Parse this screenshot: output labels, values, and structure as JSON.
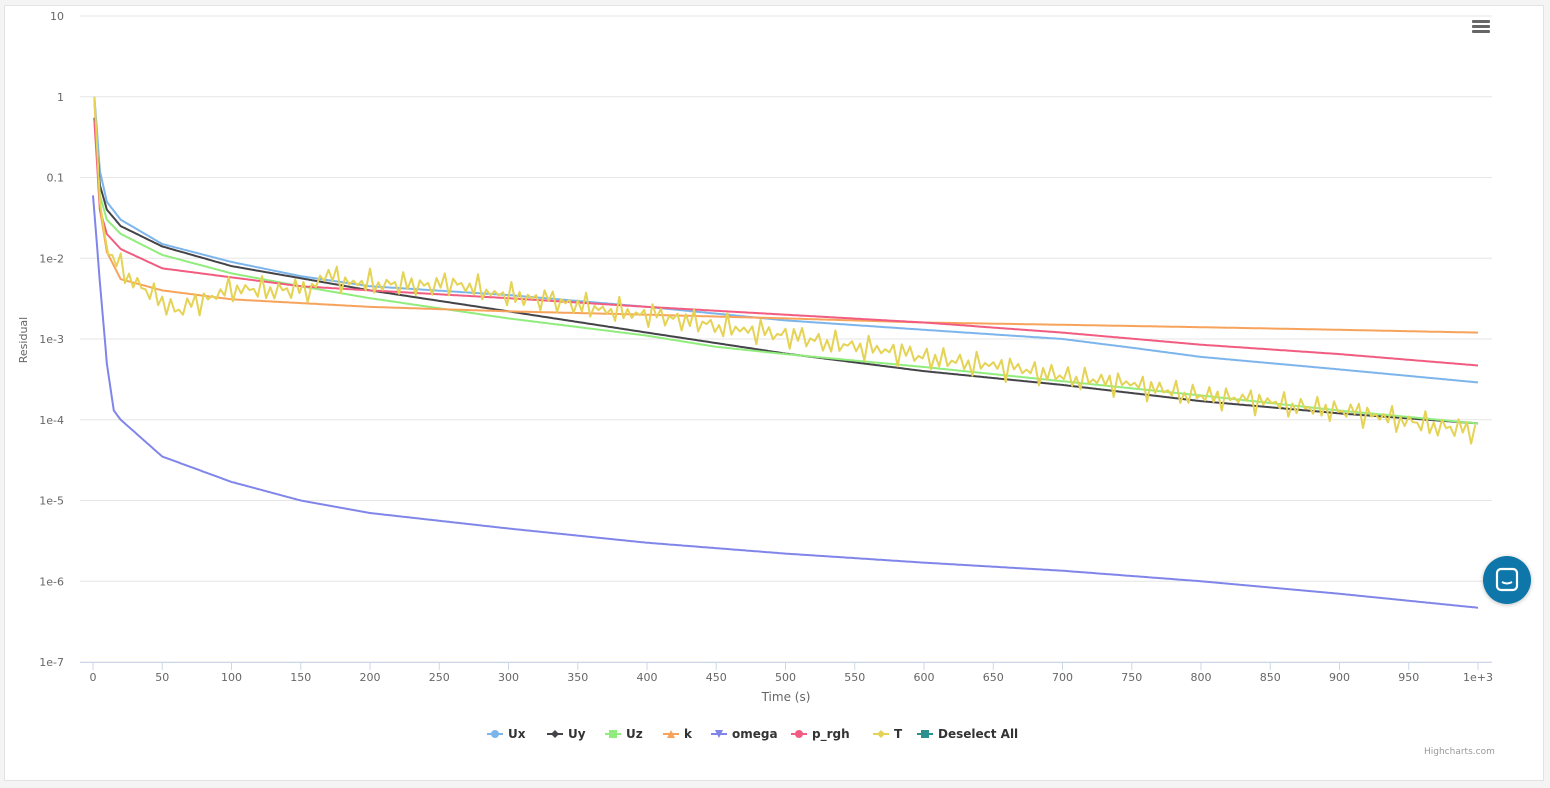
{
  "chart_data": {
    "type": "line",
    "title": "",
    "xlabel": "Time (s)",
    "ylabel": "Residual",
    "yscale": "log",
    "ylim": [
      1e-07,
      10
    ],
    "xlim": [
      0,
      1000
    ],
    "x_ticks": [
      "0",
      "50",
      "100",
      "150",
      "200",
      "250",
      "300",
      "350",
      "400",
      "450",
      "500",
      "550",
      "600",
      "650",
      "700",
      "750",
      "800",
      "850",
      "900",
      "950",
      "1e+3"
    ],
    "y_ticks": [
      "10",
      "1",
      "0.1",
      "1e-2",
      "1e-3",
      "1e-4",
      "1e-5",
      "1e-6",
      "1e-7"
    ],
    "grid": true,
    "legend_position": "bottom-center",
    "series": [
      {
        "name": "Ux",
        "color": "#7cb5ec",
        "marker": "circle",
        "x": [
          1,
          5,
          10,
          20,
          50,
          100,
          150,
          200,
          300,
          400,
          500,
          600,
          700,
          750,
          800,
          900,
          1000
        ],
        "values": [
          1,
          0.12,
          0.05,
          0.03,
          0.015,
          0.009,
          0.006,
          0.0045,
          0.0035,
          0.0025,
          0.0017,
          0.0013,
          0.001,
          0.00078,
          0.0006,
          0.00042,
          0.00029
        ]
      },
      {
        "name": "Uy",
        "color": "#434348",
        "marker": "diamond",
        "x": [
          1,
          5,
          10,
          20,
          50,
          100,
          200,
          300,
          400,
          500,
          600,
          700,
          800,
          900,
          1000
        ],
        "values": [
          0.55,
          0.08,
          0.04,
          0.025,
          0.014,
          0.008,
          0.004,
          0.0022,
          0.0012,
          0.00066,
          0.0004,
          0.00027,
          0.00017,
          0.00012,
          9e-05
        ]
      },
      {
        "name": "Uz",
        "color": "#90ed7d",
        "marker": "square",
        "x": [
          1,
          5,
          10,
          20,
          50,
          100,
          150,
          200,
          300,
          400,
          450,
          500,
          600,
          700,
          800,
          900,
          1000
        ],
        "values": [
          0.5,
          0.06,
          0.03,
          0.02,
          0.011,
          0.0065,
          0.0045,
          0.0032,
          0.0018,
          0.0011,
          0.0008,
          0.00065,
          0.00045,
          0.0003,
          0.0002,
          0.00013,
          9e-05
        ]
      },
      {
        "name": "k",
        "color": "#f7a35c",
        "marker": "triangle",
        "x": [
          1,
          5,
          10,
          20,
          50,
          100,
          200,
          300,
          400,
          500,
          600,
          700,
          800,
          900,
          1000
        ],
        "values": [
          0.9,
          0.04,
          0.012,
          0.0055,
          0.004,
          0.0031,
          0.0025,
          0.0022,
          0.002,
          0.0018,
          0.0016,
          0.0015,
          0.0014,
          0.0013,
          0.0012
        ]
      },
      {
        "name": "omega",
        "color": "#8085e9",
        "marker": "triangle-down",
        "x": [
          0,
          5,
          10,
          15,
          20,
          50,
          100,
          150,
          200,
          300,
          400,
          500,
          600,
          700,
          800,
          900,
          1000
        ],
        "values": [
          0.06,
          0.005,
          0.0005,
          0.00013,
          0.0001,
          3.5e-05,
          1.7e-05,
          1e-05,
          7e-06,
          4.5e-06,
          3e-06,
          2.2e-06,
          1.7e-06,
          1.35e-06,
          1e-06,
          7e-07,
          4.7e-07
        ]
      },
      {
        "name": "p_rgh",
        "color": "#f15c80",
        "marker": "circle",
        "x": [
          1,
          5,
          10,
          20,
          50,
          100,
          150,
          200,
          300,
          400,
          500,
          600,
          700,
          800,
          900,
          1000
        ],
        "values": [
          0.5,
          0.04,
          0.02,
          0.013,
          0.0075,
          0.0058,
          0.0045,
          0.004,
          0.0032,
          0.0025,
          0.002,
          0.0016,
          0.0012,
          0.00085,
          0.00065,
          0.00047
        ]
      },
      {
        "name": "T",
        "color": "#e4d354",
        "marker": "diamond",
        "oscillation": 1.5,
        "x": [
          1,
          5,
          10,
          20,
          30,
          50,
          60,
          80,
          100,
          160,
          165,
          180,
          250,
          260,
          300,
          400,
          500,
          600,
          700,
          800,
          900,
          1000
        ],
        "values": [
          1,
          0.05,
          0.012,
          0.008,
          0.005,
          0.003,
          0.0022,
          0.003,
          0.0042,
          0.004,
          0.0065,
          0.0052,
          0.0045,
          0.005,
          0.0035,
          0.002,
          0.0011,
          0.0006,
          0.00035,
          0.0002,
          0.00013,
          7e-05
        ]
      }
    ]
  },
  "legend_extra": {
    "label": "Deselect All",
    "color": "#2b908f"
  },
  "credit": "Highcharts.com"
}
